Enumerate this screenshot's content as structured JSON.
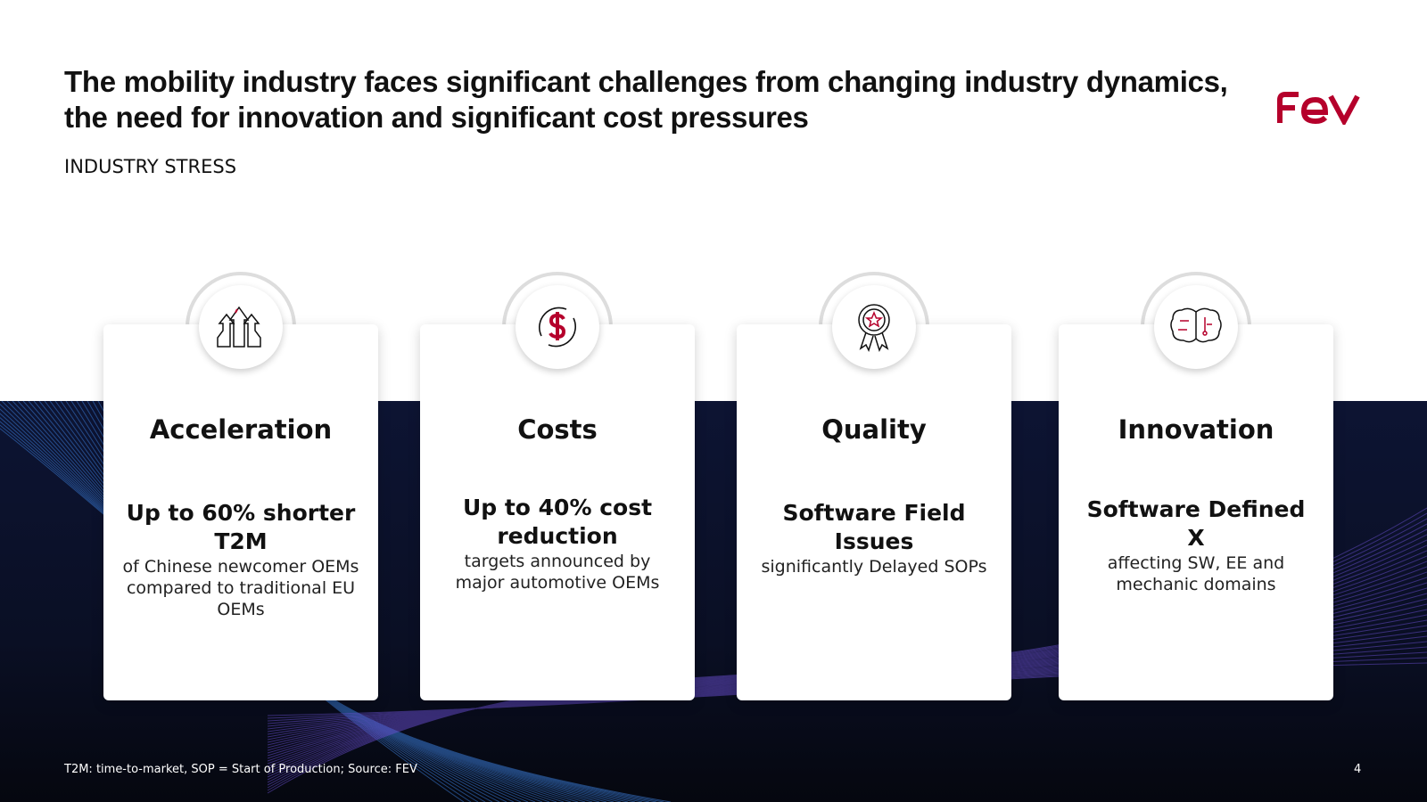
{
  "title": "The mobility industry faces significant challenges from changing industry dynamics, the need for innovation and significant cost pressures",
  "subtitle": "INDUSTRY STRESS",
  "logo_text": "FEV",
  "brand_color": "#b5002b",
  "cards": [
    {
      "icon": "arrows-up-icon",
      "heading": "Acceleration",
      "highlight": "Up to 60% shorter T2M",
      "text": "of Chinese newcomer OEMs compared to traditional EU OEMs"
    },
    {
      "icon": "dollar-cycle-icon",
      "heading": "Costs",
      "highlight": "Up to 40% cost reduction",
      "text": "targets announced by major automotive OEMs"
    },
    {
      "icon": "award-star-icon",
      "heading": "Quality",
      "highlight": "Software Field Issues",
      "text": "significantly Delayed SOPs"
    },
    {
      "icon": "brain-circuit-icon",
      "heading": "Innovation",
      "highlight": "Software Defined X",
      "text": "affecting SW, EE and mechanic domains"
    }
  ],
  "footnote": "T2M: time-to-market, SOP = Start of Production; Source: FEV",
  "page_number": "4"
}
